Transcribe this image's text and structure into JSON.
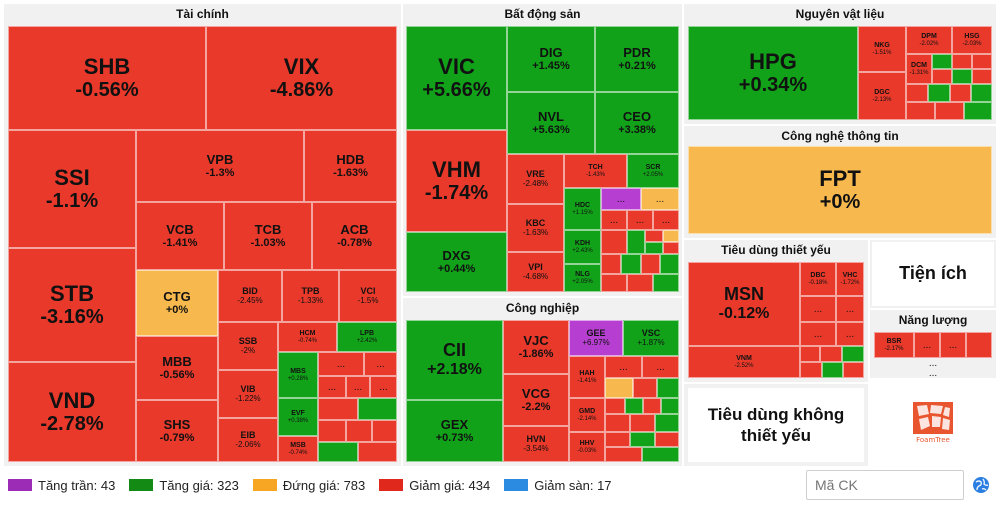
{
  "sections": {
    "tai_chinh": "Tài chính",
    "bat_dong_san": "Bất động sản",
    "nguyen_vat_lieu": "Nguyên vật liệu",
    "cong_nghe": "Công nghệ thông tin",
    "tieu_dung_thiet_yeu": "Tiêu dùng thiết yếu",
    "tien_ich": "Tiện ích",
    "nang_luong": "Năng lượng",
    "cong_nghiep": "Công nghiệp",
    "tieu_dung_khong": "Tiêu dùng không thiết yếu"
  },
  "tiles": {
    "SHB": {
      "sym": "SHB",
      "pct": "-0.56%"
    },
    "VIX": {
      "sym": "VIX",
      "pct": "-4.86%"
    },
    "SSI": {
      "sym": "SSI",
      "pct": "-1.1%"
    },
    "STB": {
      "sym": "STB",
      "pct": "-3.16%"
    },
    "VND": {
      "sym": "VND",
      "pct": "-2.78%"
    },
    "VPB": {
      "sym": "VPB",
      "pct": "-1.3%"
    },
    "HDB": {
      "sym": "HDB",
      "pct": "-1.63%"
    },
    "VCB": {
      "sym": "VCB",
      "pct": "-1.41%"
    },
    "TCB": {
      "sym": "TCB",
      "pct": "-1.03%"
    },
    "ACB": {
      "sym": "ACB",
      "pct": "-0.78%"
    },
    "CTG": {
      "sym": "CTG",
      "pct": "+0%"
    },
    "BID": {
      "sym": "BID",
      "pct": "-2.45%"
    },
    "TPB": {
      "sym": "TPB",
      "pct": "-1.33%"
    },
    "VCI": {
      "sym": "VCI",
      "pct": "-1.5%"
    },
    "SSB": {
      "sym": "SSB",
      "pct": "-2%"
    },
    "HCM": {
      "sym": "HCM",
      "pct": "-0.74%"
    },
    "LPB": {
      "sym": "LPB",
      "pct": "+2.42%"
    },
    "MBB": {
      "sym": "MBB",
      "pct": "-0.56%"
    },
    "VIB": {
      "sym": "VIB",
      "pct": "-1.22%"
    },
    "MBS": {
      "sym": "MBS",
      "pct": "+0.28%"
    },
    "SHS": {
      "sym": "SHS",
      "pct": "-0.79%"
    },
    "EIB": {
      "sym": "EIB",
      "pct": "-2.06%"
    },
    "EVF": {
      "sym": "EVF",
      "pct": "+0.38%"
    },
    "MSB": {
      "sym": "MSB",
      "pct": "-0.74%"
    },
    "VIC": {
      "sym": "VIC",
      "pct": "+5.66%"
    },
    "DIG": {
      "sym": "DIG",
      "pct": "+1.45%"
    },
    "PDR": {
      "sym": "PDR",
      "pct": "+0.21%"
    },
    "NVL": {
      "sym": "NVL",
      "pct": "+5.63%"
    },
    "CEO": {
      "sym": "CEO",
      "pct": "+3.38%"
    },
    "VHM": {
      "sym": "VHM",
      "pct": "-1.74%"
    },
    "VRE": {
      "sym": "VRE",
      "pct": "-2.48%"
    },
    "TCH": {
      "sym": "TCH",
      "pct": "-1.43%"
    },
    "SCR": {
      "sym": "SCR",
      "pct": "+2.05%"
    },
    "HDC": {
      "sym": "HDC",
      "pct": "+1.15%"
    },
    "KBC": {
      "sym": "KBC",
      "pct": "-1.63%"
    },
    "KDH": {
      "sym": "KDH",
      "pct": "+2.43%"
    },
    "DXG": {
      "sym": "DXG",
      "pct": "+0.44%"
    },
    "VPI": {
      "sym": "VPI",
      "pct": "-4.68%"
    },
    "NLG": {
      "sym": "NLG",
      "pct": "+2.05%"
    },
    "HPG": {
      "sym": "HPG",
      "pct": "+0.34%"
    },
    "NKG": {
      "sym": "NKG",
      "pct": "-1.51%"
    },
    "DPM": {
      "sym": "DPM",
      "pct": "-2.02%"
    },
    "HSG": {
      "sym": "HSG",
      "pct": "-2.03%"
    },
    "DGC": {
      "sym": "DGC",
      "pct": "-2.13%"
    },
    "DCM": {
      "sym": "DCM",
      "pct": "-1.31%"
    },
    "FPT": {
      "sym": "FPT",
      "pct": "+0%"
    },
    "MSN": {
      "sym": "MSN",
      "pct": "-0.12%"
    },
    "DBC": {
      "sym": "DBC",
      "pct": "-0.18%"
    },
    "VHC": {
      "sym": "VHC",
      "pct": "-1.72%"
    },
    "VNM": {
      "sym": "VNM",
      "pct": "-2.52%"
    },
    "BSR": {
      "sym": "BSR",
      "pct": "-2.17%"
    },
    "CII": {
      "sym": "CII",
      "pct": "+2.18%"
    },
    "VJC": {
      "sym": "VJC",
      "pct": "-1.86%"
    },
    "GEE": {
      "sym": "GEE",
      "pct": "+6.97%"
    },
    "VSC": {
      "sym": "VSC",
      "pct": "+1.87%"
    },
    "HAH": {
      "sym": "HAH",
      "pct": "-1.41%"
    },
    "VCG": {
      "sym": "VCG",
      "pct": "-2.2%"
    },
    "GMD": {
      "sym": "GMD",
      "pct": "-2.14%"
    },
    "GEX": {
      "sym": "GEX",
      "pct": "+0.73%"
    },
    "HVN": {
      "sym": "HVN",
      "pct": "-3.54%"
    },
    "HHV": {
      "sym": "HHV",
      "pct": "-0.03%"
    }
  },
  "ellipsis": "...",
  "legend": [
    {
      "label": "Tăng trần: 43",
      "color": "#9c2bb5"
    },
    {
      "label": "Tăng giá: 323",
      "color": "#128a14"
    },
    {
      "label": "Đứng giá: 783",
      "color": "#f7a623"
    },
    {
      "label": "Giảm giá: 434",
      "color": "#e0281c"
    },
    {
      "label": "Giảm sàn: 17",
      "color": "#2a8be0"
    }
  ],
  "search": {
    "placeholder": "Mã CK"
  },
  "logo_text": "FoamTree",
  "colors": {
    "red": "#e8392b",
    "green": "#12a21a",
    "amber": "#f7b94d",
    "purple": "#b63ed0"
  }
}
